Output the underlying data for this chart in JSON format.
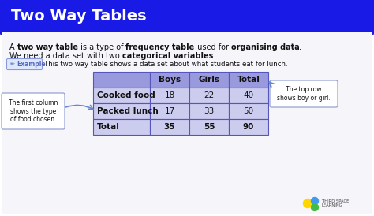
{
  "title": "Two Way Tables",
  "title_bg": "#1A1AE6",
  "title_color": "#FFFFFF",
  "bg_color": "#F5F5FA",
  "body_bg": "#F5F5FA",
  "text_color": "#111111",
  "body_text_line1_parts": [
    {
      "text": "A ",
      "bold": false
    },
    {
      "text": "two way table",
      "bold": true
    },
    {
      "text": " is a type of ",
      "bold": false
    },
    {
      "text": "frequency table",
      "bold": true
    },
    {
      "text": " used for ",
      "bold": false
    },
    {
      "text": "organising data",
      "bold": true
    },
    {
      "text": ".",
      "bold": false
    }
  ],
  "body_text_line2_parts": [
    {
      "text": "We need a data set with two ",
      "bold": false
    },
    {
      "text": "categorical variables",
      "bold": true
    },
    {
      "text": ".",
      "bold": false
    }
  ],
  "example_label": "Example",
  "example_text": "This two way table shows a data set about what students eat for lunch.",
  "example_box_bg": "#DDE8FF",
  "example_box_border": "#8899DD",
  "table_headers": [
    "",
    "Boys",
    "Girls",
    "Total"
  ],
  "table_rows": [
    [
      "Cooked food",
      "18",
      "22",
      "40"
    ],
    [
      "Packed lunch",
      "17",
      "33",
      "50"
    ],
    [
      "Total",
      "35",
      "55",
      "90"
    ]
  ],
  "table_header_bg": "#9999DD",
  "table_row_bg": "#CCCCEE",
  "table_border_color": "#5555BB",
  "left_annotation": "The first column\nshows the type\nof food chosen.",
  "right_annotation": "The top row\nshows boy or girl.",
  "annot_box_bg": "#FFFFFF",
  "annot_box_border": "#8899CC",
  "annot_arrow_color": "#6688CC",
  "logo_text": "THIRD SPACE\nLEARNING",
  "logo_color1": "#FFD700",
  "logo_color2": "#4499EE",
  "logo_color3": "#44BB44"
}
